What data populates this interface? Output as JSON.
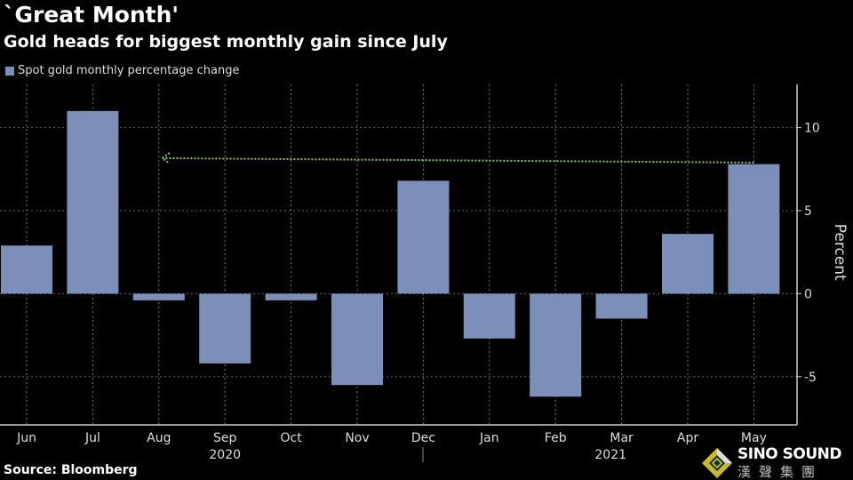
{
  "title": "`Great Month'",
  "subtitle": "Gold heads for biggest monthly gain since July",
  "source": "Source: Bloomberg",
  "watermark": {
    "line1": "SINO SOUND",
    "line2": "漢聲集團"
  },
  "colors": {
    "bar": "#7b8fb8",
    "background": "#000000",
    "arrow": "#8fc46a"
  },
  "chart_data": {
    "type": "bar",
    "categories": [
      "Jun",
      "Jul",
      "Aug",
      "Sep",
      "Oct",
      "Nov",
      "Dec",
      "Jan",
      "Feb",
      "Mar",
      "Apr",
      "May"
    ],
    "year_labels": [
      {
        "label": "2020",
        "category": "Sep"
      },
      {
        "label": "2021",
        "category": "Feb"
      }
    ],
    "series": [
      {
        "name": "Spot gold monthly percentage change",
        "values": [
          2.9,
          11.0,
          -0.4,
          -4.2,
          -0.4,
          -5.5,
          6.8,
          -2.7,
          -6.2,
          -1.5,
          3.6,
          7.8
        ]
      }
    ],
    "ylabel": "Percent",
    "ylim": [
      -7.9,
      12.6
    ],
    "yticks": [
      -5,
      0,
      5,
      10
    ],
    "ytick_labels": [
      "-5",
      "0",
      "5",
      "10"
    ],
    "y_axis_side": "right",
    "grid": "vertical dotted",
    "annotation": {
      "type": "dotted arrow",
      "from": "May",
      "to": "Aug",
      "level": 8.0
    }
  }
}
